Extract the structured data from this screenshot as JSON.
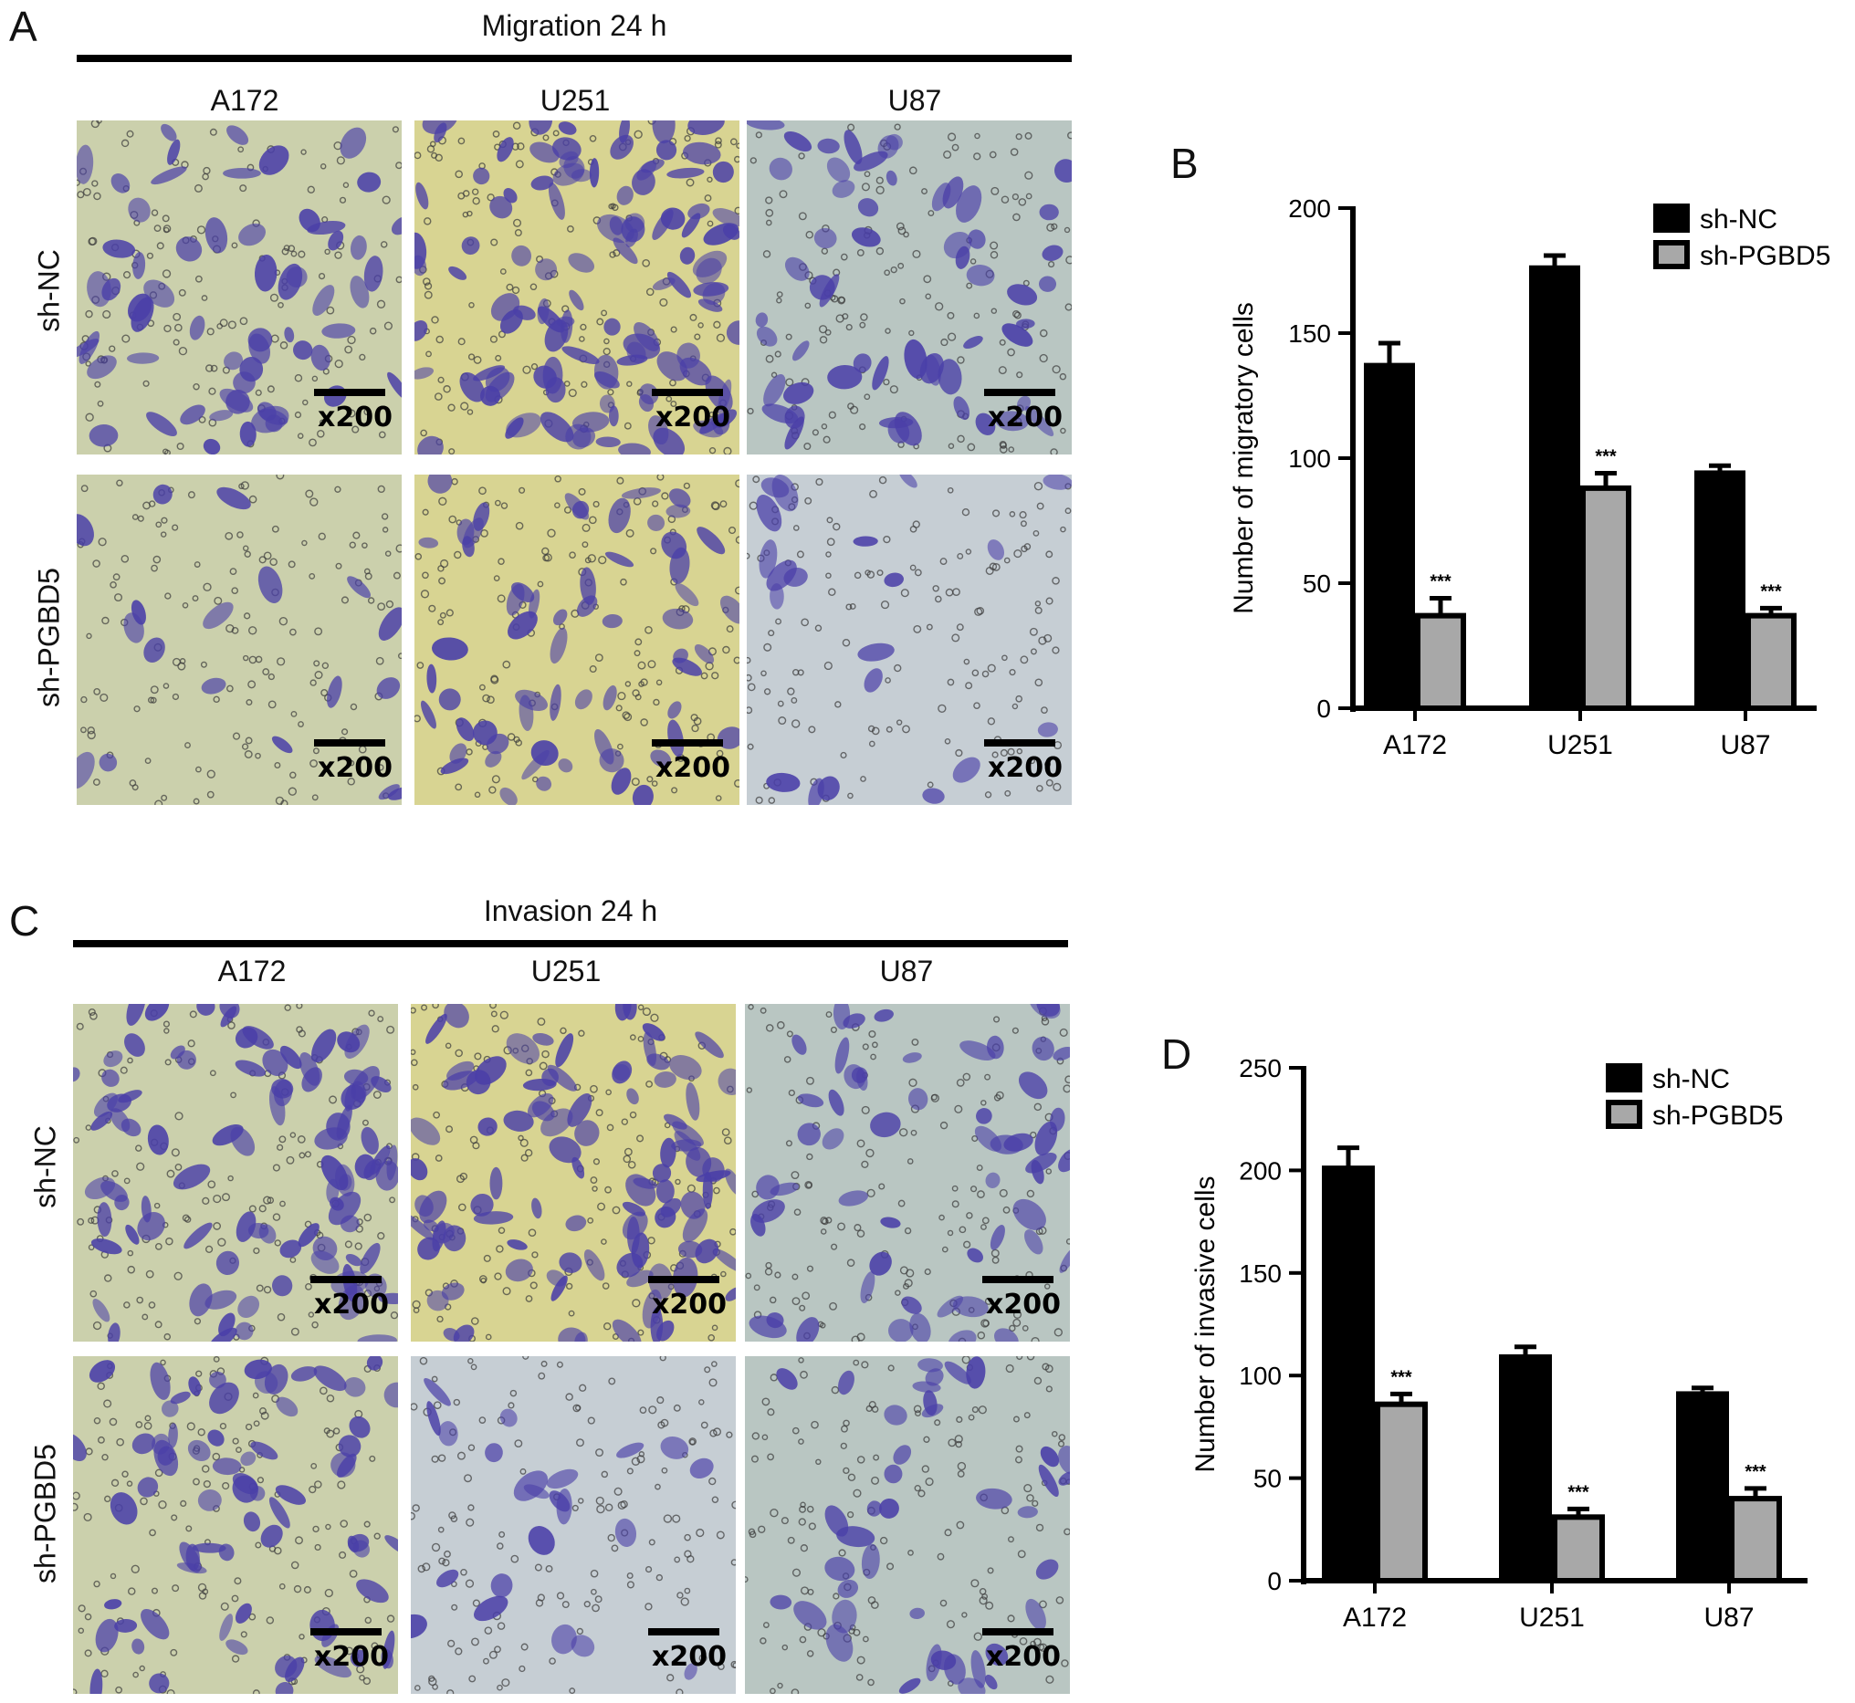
{
  "panels": {
    "a": {
      "letter": "A",
      "title": "Migration 24 h"
    },
    "b": {
      "letter": "B"
    },
    "c": {
      "letter": "C",
      "title": "Invasion 24 h"
    },
    "d": {
      "letter": "D"
    }
  },
  "columns": [
    "A172",
    "U251",
    "U87"
  ],
  "rows": [
    "sh-NC",
    "sh-PGBD5"
  ],
  "scale_label": "x200",
  "colors": {
    "sh_nc": "#000000",
    "sh_pgbd5": "#a8a8a8",
    "stain": "#4a3fa8",
    "bg_a172": "#cbd0ac",
    "bg_u251": "#d8d492",
    "bg_u87": "#b9c6c2",
    "bg_u87_lower": "#c6ced4"
  },
  "chart_data": [
    {
      "panel": "B",
      "type": "bar",
      "categories": [
        "A172",
        "U251",
        "U87"
      ],
      "series": [
        {
          "name": "sh-NC",
          "values": [
            137,
            176,
            94
          ],
          "errors": [
            9,
            5,
            3
          ]
        },
        {
          "name": "sh-PGBD5",
          "values": [
            37,
            88,
            37
          ],
          "errors": [
            7,
            6,
            3
          ]
        }
      ],
      "significance": [
        "***",
        "***",
        "***"
      ],
      "ylabel": "Number of migratory cells",
      "ylim": [
        0,
        200
      ],
      "yticks": [
        0,
        50,
        100,
        150,
        200
      ],
      "legend_position": "top-right"
    },
    {
      "panel": "D",
      "type": "bar",
      "categories": [
        "A172",
        "U251",
        "U87"
      ],
      "series": [
        {
          "name": "sh-NC",
          "values": [
            201,
            109,
            91
          ],
          "errors": [
            10,
            5,
            3
          ]
        },
        {
          "name": "sh-PGBD5",
          "values": [
            86,
            31,
            40
          ],
          "errors": [
            5,
            4,
            5
          ]
        }
      ],
      "significance": [
        "***",
        "***",
        "***"
      ],
      "ylabel": "Number of invasive cells",
      "ylim": [
        0,
        250
      ],
      "yticks": [
        0,
        50,
        100,
        150,
        200,
        250
      ],
      "legend_position": "top-right"
    }
  ]
}
